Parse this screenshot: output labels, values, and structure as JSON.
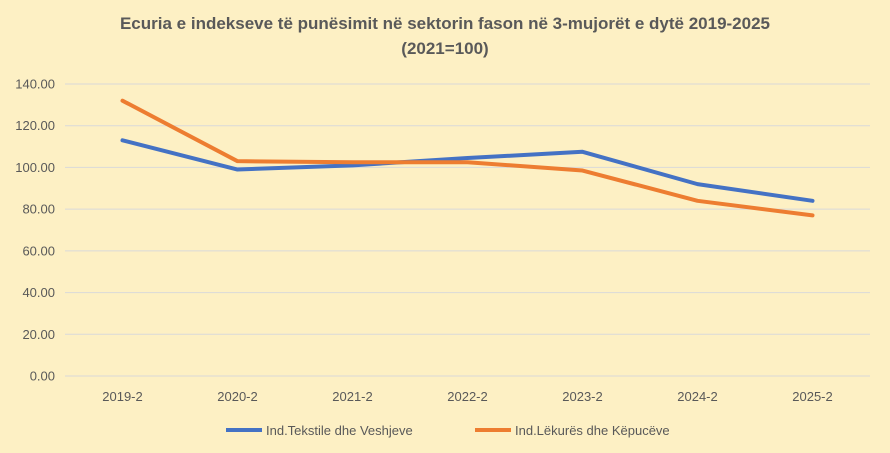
{
  "chart_data": {
    "type": "line",
    "title": "Ecuria  e indekseve të punësimit  në sektorin fason në 3-mujorët e dytë 2019-2025",
    "subtitle": "(2021=100)",
    "xlabel": "",
    "ylabel": "",
    "categories": [
      "2019-2",
      "2020-2",
      "2021-2",
      "2022-2",
      "2023-2",
      "2024-2",
      "2025-2"
    ],
    "ylim": [
      0,
      140
    ],
    "yticks": [
      "0.00",
      "20.00",
      "40.00",
      "60.00",
      "80.00",
      "100.00",
      "120.00",
      "140.00"
    ],
    "grid": true,
    "legend_position": "bottom",
    "series": [
      {
        "name": "Ind.Tekstile dhe Veshjeve",
        "color": "#4472c4",
        "values": [
          113,
          99,
          101,
          104.5,
          107.5,
          92,
          84
        ]
      },
      {
        "name": "Ind.Lëkurës dhe Këpucëve",
        "color": "#ed7d31",
        "values": [
          132,
          103,
          102.5,
          102.5,
          98.5,
          84,
          77
        ]
      }
    ]
  }
}
